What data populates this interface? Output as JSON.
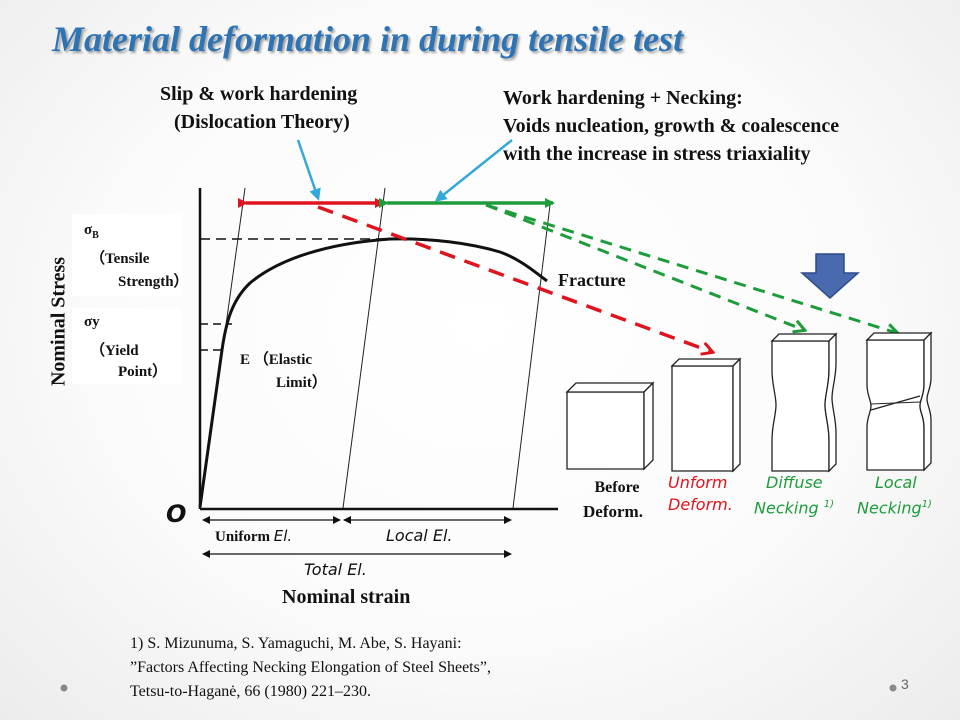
{
  "title": "Material deformation in during tensile test",
  "annotations": {
    "slip_line1": "Slip & work hardening",
    "slip_line2": "(Dislocation Theory)",
    "work_line1": "Work hardening + Necking:",
    "work_line2": "Voids nucleation, growth & coalescence",
    "work_line3": "with the increase in stress triaxiality",
    "fracture": "Fracture"
  },
  "axes": {
    "ylabel": "Nominal Stress",
    "xlabel": "Nominal strain",
    "origin": "O"
  },
  "stress_labels": {
    "sigma_b": "σ",
    "sigma_b_sub": "B",
    "tensile1": "（Tensile",
    "tensile2": "Strength）",
    "sigma_y": "σy",
    "yield1": "（Yield",
    "yield2": "Point）",
    "elastic1": "E （Elastic",
    "elastic2": "Limit）"
  },
  "elongation": {
    "uniform_prefix": "Uniform",
    "uniform_suffix": "El.",
    "local": "Local El.",
    "total": "Total El."
  },
  "specimens": {
    "before1": "Before",
    "before2": "Deform.",
    "uniform1": "Unform",
    "uniform2": "Deform.",
    "diffuse1": "Diffuse",
    "diffuse2": "Necking",
    "diffuse_ref": "1)",
    "local1": "Local",
    "local2": "Necking",
    "local_ref": "1)"
  },
  "reference": {
    "line1": "1) S. Mizunuma, S. Yamaguchi, M. Abe, S. Hayani:",
    "line2": "”Factors Affecting Necking Elongation of Steel Sheets”,",
    "line3": "Tetsu-to-Haganė, 66 (1980) 221–230."
  },
  "page_number": "3",
  "colors": {
    "title": "#2e74b5",
    "red": "#e0141e",
    "green": "#1e9c3c",
    "blue_arrow": "#34a8d8",
    "down_arrow": "#4a6ab0"
  }
}
